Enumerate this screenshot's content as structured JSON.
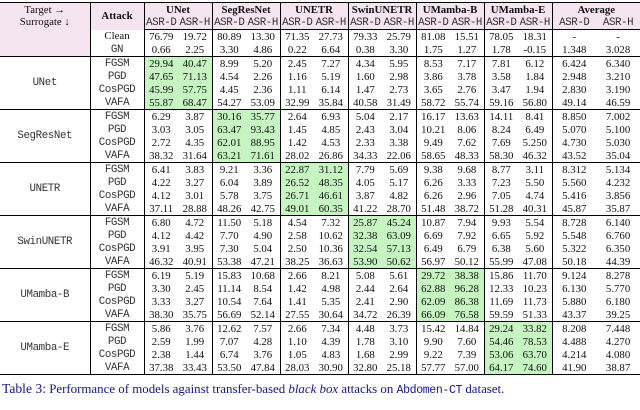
{
  "colors": {
    "header_bg": "#f4e5f1",
    "highlight_bg": "#c6f5c2",
    "caption_color": "#15158c",
    "rule_color": "#000000"
  },
  "table": {
    "corner": {
      "line1": "Target →",
      "line2": "Surrogate ↓"
    },
    "attack_header": "Attack",
    "groups": [
      "UNet",
      "SegResNet",
      "UNETR",
      "SwinUNETR",
      "UMamba-B",
      "UMamba-E",
      "Average"
    ],
    "subheaders": [
      "ASR-D",
      "ASR-H"
    ],
    "baseline_rows": [
      {
        "attack": "Clean",
        "style": "serif",
        "values": [
          "76.79",
          "19.72",
          "80.89",
          "13.30",
          "71.35",
          "27.73",
          "79.33",
          "25.79",
          "81.08",
          "15.51",
          "78.05",
          "18.31",
          "-",
          "-"
        ]
      },
      {
        "attack": "GN",
        "style": "mono",
        "values": [
          "0.66",
          "2.25",
          "3.30",
          "4.86",
          "0.22",
          "6.64",
          "0.38",
          "3.30",
          "1.75",
          "1.27",
          "1.78",
          "-0.15",
          "1.348",
          "3.028"
        ]
      }
    ],
    "blocks": [
      {
        "surrogate": "UNet",
        "highlight_group": 0,
        "rows": [
          {
            "attack": "FGSM",
            "values": [
              "29.94",
              "40.47",
              "8.99",
              "5.20",
              "2.45",
              "7.27",
              "4.34",
              "5.95",
              "8.53",
              "7.17",
              "7.81",
              "6.12",
              "6.424",
              "6.340"
            ]
          },
          {
            "attack": "PGD",
            "values": [
              "47.65",
              "71.13",
              "4.54",
              "2.26",
              "1.16",
              "5.19",
              "1.60",
              "2.98",
              "3.86",
              "3.78",
              "3.58",
              "1.84",
              "2.948",
              "3.210"
            ]
          },
          {
            "attack": "CosPGD",
            "values": [
              "45.99",
              "57.75",
              "4.45",
              "2.36",
              "1.11",
              "6.14",
              "1.47",
              "2.73",
              "3.65",
              "2.76",
              "3.47",
              "1.94",
              "2.830",
              "3.190"
            ]
          },
          {
            "attack": "VAFA",
            "values": [
              "55.87",
              "68.47",
              "54.27",
              "53.09",
              "32.99",
              "35.84",
              "40.58",
              "31.49",
              "58.72",
              "55.74",
              "59.16",
              "56.80",
              "49.14",
              "46.59"
            ]
          }
        ]
      },
      {
        "surrogate": "SegResNet",
        "highlight_group": 1,
        "rows": [
          {
            "attack": "FGSM",
            "values": [
              "6.29",
              "3.87",
              "30.16",
              "35.77",
              "2.64",
              "6.93",
              "5.04",
              "2.17",
              "16.17",
              "13.63",
              "14.11",
              "8.41",
              "8.850",
              "7.002"
            ]
          },
          {
            "attack": "PGD",
            "values": [
              "3.03",
              "3.05",
              "63.47",
              "93.43",
              "1.45",
              "4.85",
              "2.43",
              "3.04",
              "10.21",
              "8.06",
              "8.24",
              "6.49",
              "5.070",
              "5.100"
            ]
          },
          {
            "attack": "CosPGD",
            "values": [
              "2.72",
              "4.35",
              "62.01",
              "88.95",
              "1.42",
              "4.53",
              "2.33",
              "3.38",
              "9.49",
              "7.62",
              "7.69",
              "5.250",
              "4.730",
              "5.030"
            ]
          },
          {
            "attack": "VAFA",
            "values": [
              "38.32",
              "31.64",
              "63.21",
              "71.61",
              "28.02",
              "26.86",
              "34.33",
              "22.06",
              "58.65",
              "48.33",
              "58.30",
              "46.32",
              "43.52",
              "35.04"
            ]
          }
        ]
      },
      {
        "surrogate": "UNETR",
        "highlight_group": 2,
        "rows": [
          {
            "attack": "FGSM",
            "values": [
              "6.41",
              "3.83",
              "9.21",
              "3.36",
              "22.87",
              "31.12",
              "7.79",
              "5.69",
              "9.38",
              "9.68",
              "8.77",
              "3.11",
              "8.312",
              "5.134"
            ]
          },
          {
            "attack": "PGD",
            "values": [
              "4.22",
              "3.27",
              "6.04",
              "3.89",
              "26.52",
              "48.35",
              "4.05",
              "5.17",
              "6.26",
              "3.33",
              "7.23",
              "5.50",
              "5.560",
              "4.232"
            ]
          },
          {
            "attack": "CosPGD",
            "values": [
              "4.12",
              "3.01",
              "5.78",
              "3.75",
              "26.71",
              "46.61",
              "3.87",
              "4.82",
              "6.26",
              "2.96",
              "7.05",
              "4.74",
              "5.416",
              "3.856"
            ]
          },
          {
            "attack": "VAFA",
            "values": [
              "37.11",
              "28.88",
              "48.26",
              "42.75",
              "49.01",
              "60.35",
              "41.22",
              "28.70",
              "51.48",
              "38.72",
              "51.28",
              "40.31",
              "45.87",
              "35.87"
            ]
          }
        ]
      },
      {
        "surrogate": "SwinUNETR",
        "highlight_group": 3,
        "rows": [
          {
            "attack": "FGSM",
            "values": [
              "6.80",
              "4.72",
              "11.50",
              "5.18",
              "4.54",
              "7.32",
              "25.87",
              "45.24",
              "10.87",
              "7.94",
              "9.93",
              "5.54",
              "8.728",
              "6.140"
            ]
          },
          {
            "attack": "PGD",
            "values": [
              "4.12",
              "4.42",
              "7.70",
              "4.90",
              "2.58",
              "10.62",
              "32.38",
              "63.09",
              "6.69",
              "7.92",
              "6.65",
              "5.92",
              "5.548",
              "6.760"
            ]
          },
          {
            "attack": "CosPGD",
            "values": [
              "3.91",
              "3.95",
              "7.30",
              "5.04",
              "2.50",
              "10.36",
              "32.54",
              "57.13",
              "6.49",
              "6.79",
              "6.38",
              "5.60",
              "5.322",
              "6.350"
            ]
          },
          {
            "attack": "VAFA",
            "values": [
              "46.32",
              "40.91",
              "53.38",
              "47.21",
              "38.25",
              "36.63",
              "53.90",
              "50.62",
              "56.97",
              "50.12",
              "55.99",
              "47.08",
              "50.18",
              "44.39"
            ]
          }
        ]
      },
      {
        "surrogate": "UMamba-B",
        "highlight_group": 4,
        "rows": [
          {
            "attack": "FGSM",
            "values": [
              "6.19",
              "5.19",
              "15.83",
              "10.68",
              "2.66",
              "8.21",
              "5.08",
              "5.61",
              "29.72",
              "38.38",
              "15.86",
              "11.70",
              "9.124",
              "8.278"
            ]
          },
          {
            "attack": "PGD",
            "values": [
              "3.30",
              "2.45",
              "11.14",
              "8.54",
              "1.42",
              "4.98",
              "2.44",
              "2.64",
              "62.88",
              "96.28",
              "12.33",
              "10.23",
              "6.130",
              "5.770"
            ]
          },
          {
            "attack": "CosPGD",
            "values": [
              "3.33",
              "3.27",
              "10.54",
              "7.64",
              "1.41",
              "5.35",
              "2.41",
              "2.90",
              "62.09",
              "86.38",
              "11.69",
              "11.73",
              "5.880",
              "6.180"
            ]
          },
          {
            "attack": "VAFA",
            "values": [
              "38.30",
              "35.75",
              "56.69",
              "52.14",
              "27.55",
              "30.64",
              "34.72",
              "26.39",
              "66.09",
              "76.58",
              "59.59",
              "51.33",
              "43.37",
              "39.25"
            ]
          }
        ]
      },
      {
        "surrogate": "UMamba-E",
        "highlight_group": 5,
        "rows": [
          {
            "attack": "FGSM",
            "values": [
              "5.86",
              "3.76",
              "12.62",
              "7.57",
              "2.66",
              "7.34",
              "4.48",
              "3.73",
              "15.42",
              "14.84",
              "29.24",
              "33.82",
              "8.208",
              "7.448"
            ]
          },
          {
            "attack": "PGD",
            "values": [
              "2.59",
              "1.99",
              "7.07",
              "4.28",
              "1.10",
              "4.39",
              "1.78",
              "3.10",
              "9.90",
              "7.60",
              "54.46",
              "78.53",
              "4.488",
              "4.270"
            ]
          },
          {
            "attack": "CosPGD",
            "values": [
              "2.38",
              "1.44",
              "6.74",
              "3.76",
              "1.05",
              "4.83",
              "1.68",
              "2.99",
              "9.22",
              "7.39",
              "53.06",
              "63.70",
              "4.214",
              "4.080"
            ]
          },
          {
            "attack": "VAFA",
            "values": [
              "37.38",
              "33.43",
              "53.50",
              "47.84",
              "28.03",
              "30.90",
              "32.80",
              "25.18",
              "57.77",
              "57.00",
              "64.17",
              "74.60",
              "41.90",
              "38.87"
            ]
          }
        ]
      }
    ]
  },
  "caption": {
    "label": "Table 3:",
    "part1": " Performance of models against transfer-based ",
    "italic": "black box",
    "part2": " attacks on ",
    "code": "Abdomen-CT",
    "part3": " dataset."
  }
}
